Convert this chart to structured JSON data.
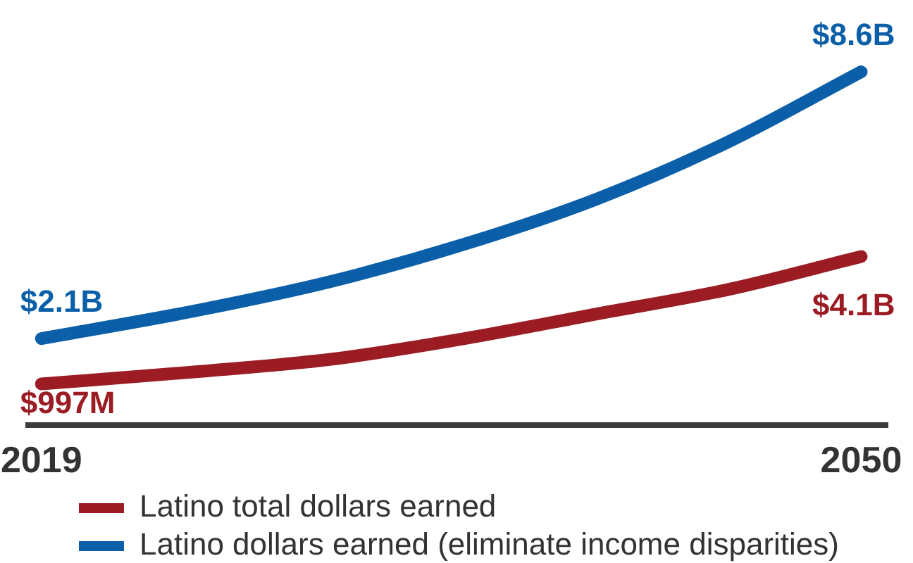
{
  "chart_data": {
    "type": "line",
    "x": [
      2019,
      2025,
      2030,
      2035,
      2040,
      2045,
      2050
    ],
    "xlim": [
      2018.5,
      2051
    ],
    "xticks": [
      2019,
      2050
    ],
    "series": [
      {
        "name": "Latino total dollars earned",
        "color": "#9b1c23",
        "values": [
          997000000,
          1300000000,
          1600000000,
          2100000000,
          2700000000,
          3300000000,
          4100000000
        ],
        "value_labels": [
          "$997M",
          null,
          null,
          null,
          null,
          null,
          "$4.1B"
        ]
      },
      {
        "name": "Latino dollars earned (eliminate income disparities)",
        "color": "#0b5fa8",
        "values": [
          2100000000,
          2800000000,
          3500000000,
          4400000000,
          5500000000,
          6900000000,
          8600000000
        ],
        "value_labels": [
          "$2.1B",
          null,
          null,
          null,
          null,
          null,
          "$8.6B"
        ]
      }
    ],
    "legend": "bottom left",
    "tick_labels": "x",
    "line_style": "solid"
  }
}
